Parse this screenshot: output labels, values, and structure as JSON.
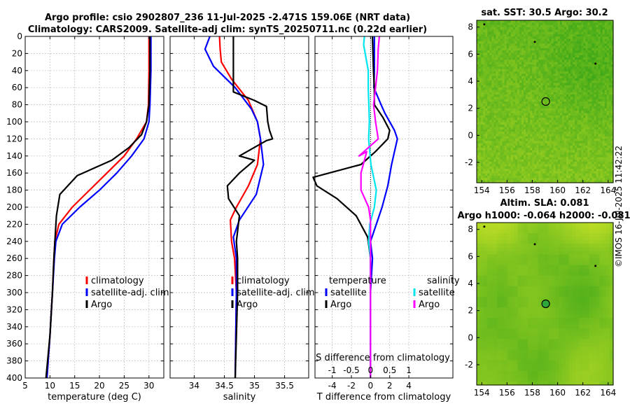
{
  "figure": {
    "title_line1": "Argo profile: csio 2902807_236 11-Jul-2025 -2.471S 159.06E (NRT data)",
    "title_line2": "Climatology: CARS2009. Satellite-adj clim: synTS_20250711.nc (0.22d earlier)",
    "stamp": "©IMOS 16-Jul-2025 11:42:22"
  },
  "colors": {
    "climatology": "#ff0000",
    "satellite": "#0000ff",
    "argo": "#000000",
    "satellite_diff_s": "#00e5ee",
    "argo_diff_s": "#ff00ff",
    "grid": "#bdbdbd"
  },
  "chart_data": [
    {
      "id": "temperature",
      "type": "line",
      "xlabel": "temperature (deg C)",
      "ylabel": "",
      "xlim": [
        5,
        33
      ],
      "ylim": [
        400,
        0
      ],
      "xticks": [
        5,
        10,
        15,
        20,
        25,
        30
      ],
      "yticks": [
        0,
        20,
        40,
        60,
        80,
        100,
        120,
        140,
        160,
        180,
        200,
        220,
        240,
        260,
        280,
        300,
        320,
        340,
        360,
        380,
        400
      ],
      "legend_position": "lower-right",
      "series": [
        {
          "name": "climatology",
          "color_key": "climatology",
          "points": [
            [
              30.0,
              0
            ],
            [
              30.0,
              40
            ],
            [
              29.9,
              80
            ],
            [
              29.5,
              100
            ],
            [
              27.5,
              120
            ],
            [
              25.0,
              140
            ],
            [
              21.5,
              160
            ],
            [
              18.0,
              180
            ],
            [
              14.5,
              200
            ],
            [
              11.8,
              220
            ],
            [
              11.0,
              240
            ],
            [
              10.8,
              260
            ],
            [
              10.5,
              300
            ],
            [
              10.0,
              350
            ],
            [
              9.4,
              400
            ]
          ]
        },
        {
          "name": "satellite-adj. clim",
          "color_key": "satellite",
          "points": [
            [
              30.4,
              0
            ],
            [
              30.4,
              40
            ],
            [
              30.2,
              80
            ],
            [
              30.0,
              100
            ],
            [
              29.0,
              120
            ],
            [
              26.5,
              140
            ],
            [
              23.5,
              160
            ],
            [
              20.0,
              180
            ],
            [
              16.0,
              200
            ],
            [
              12.5,
              220
            ],
            [
              11.2,
              240
            ],
            [
              10.9,
              260
            ],
            [
              10.5,
              300
            ],
            [
              10.0,
              350
            ],
            [
              9.4,
              400
            ]
          ]
        },
        {
          "name": "Argo",
          "color_key": "argo",
          "points": [
            [
              30.2,
              0
            ],
            [
              30.2,
              40
            ],
            [
              30.0,
              80
            ],
            [
              29.5,
              100
            ],
            [
              28.5,
              115
            ],
            [
              26.0,
              130
            ],
            [
              22.5,
              145
            ],
            [
              15.5,
              163
            ],
            [
              12.0,
              185
            ],
            [
              11.3,
              210
            ],
            [
              11.0,
              240
            ],
            [
              10.8,
              260
            ],
            [
              10.5,
              300
            ],
            [
              10.0,
              350
            ],
            [
              9.2,
              400
            ]
          ]
        }
      ]
    },
    {
      "id": "salinity",
      "type": "line",
      "xlabel": "salinity",
      "ylabel": "",
      "xlim": [
        33.6,
        35.9
      ],
      "ylim": [
        400,
        0
      ],
      "xticks": [
        34,
        34.5,
        35,
        35.5
      ],
      "yticks": [
        0,
        20,
        40,
        60,
        80,
        100,
        120,
        140,
        160,
        180,
        200,
        220,
        240,
        260,
        280,
        300,
        320,
        340,
        360,
        380,
        400
      ],
      "legend_position": "lower-right",
      "series": [
        {
          "name": "climatology",
          "color_key": "climatology",
          "points": [
            [
              34.42,
              0
            ],
            [
              34.43,
              15
            ],
            [
              34.45,
              30
            ],
            [
              34.62,
              50
            ],
            [
              34.9,
              75
            ],
            [
              35.05,
              100
            ],
            [
              35.1,
              120
            ],
            [
              35.05,
              150
            ],
            [
              34.9,
              175
            ],
            [
              34.7,
              200
            ],
            [
              34.6,
              215
            ],
            [
              34.62,
              240
            ],
            [
              34.67,
              260
            ],
            [
              34.7,
              300
            ],
            [
              34.68,
              400
            ]
          ]
        },
        {
          "name": "satellite-adj. clim",
          "color_key": "satellite",
          "points": [
            [
              34.26,
              0
            ],
            [
              34.18,
              15
            ],
            [
              34.32,
              35
            ],
            [
              34.68,
              60
            ],
            [
              34.95,
              85
            ],
            [
              35.05,
              100
            ],
            [
              35.1,
              120
            ],
            [
              35.15,
              150
            ],
            [
              35.03,
              185
            ],
            [
              34.75,
              215
            ],
            [
              34.65,
              235
            ],
            [
              34.7,
              260
            ],
            [
              34.7,
              300
            ],
            [
              34.68,
              400
            ]
          ]
        },
        {
          "name": "Argo",
          "color_key": "argo",
          "points": [
            [
              34.65,
              0
            ],
            [
              34.65,
              50
            ],
            [
              34.65,
              65
            ],
            [
              35.0,
              75
            ],
            [
              35.2,
              82
            ],
            [
              35.22,
              100
            ],
            [
              35.25,
              110
            ],
            [
              35.3,
              120
            ],
            [
              35.2,
              122
            ],
            [
              35.0,
              130
            ],
            [
              34.75,
              140
            ],
            [
              35.0,
              145
            ],
            [
              34.75,
              160
            ],
            [
              34.55,
              175
            ],
            [
              34.57,
              190
            ],
            [
              34.75,
              210
            ],
            [
              34.7,
              240
            ],
            [
              34.72,
              260
            ],
            [
              34.72,
              300
            ],
            [
              34.68,
              400
            ]
          ]
        }
      ]
    },
    {
      "id": "difference",
      "type": "line",
      "xlabel": "T difference from climatology",
      "x2label": "S difference from climatology",
      "xlim": [
        -5.8,
        8.6
      ],
      "x2lim": [
        -1.45,
        2.15
      ],
      "ylim": [
        400,
        0
      ],
      "xticks": [
        -4,
        -2,
        0,
        2,
        4
      ],
      "x2ticks": [
        -1,
        -0.5,
        0,
        0.5,
        1
      ],
      "yticks": [
        0,
        20,
        40,
        60,
        80,
        100,
        120,
        140,
        160,
        180,
        200,
        220,
        240,
        260,
        280,
        300,
        320,
        340,
        360,
        380,
        400
      ],
      "legend_temperature_title": "temperature",
      "legend_salinity_title": "salinity",
      "legend_position": "lower-right",
      "series": [
        {
          "name": "satellite",
          "group": "temperature",
          "axis": "T",
          "color_key": "satellite",
          "points": [
            [
              0.4,
              0
            ],
            [
              0.4,
              40
            ],
            [
              0.35,
              60
            ],
            [
              1.1,
              80
            ],
            [
              1.5,
              90
            ],
            [
              2.5,
              110
            ],
            [
              2.8,
              120
            ],
            [
              2.6,
              130
            ],
            [
              2.2,
              150
            ],
            [
              1.8,
              175
            ],
            [
              1.2,
              200
            ],
            [
              0.6,
              220
            ],
            [
              0.0,
              240
            ],
            [
              0.2,
              260
            ],
            [
              0.0,
              300
            ],
            [
              0.0,
              400
            ]
          ]
        },
        {
          "name": "Argo",
          "group": "temperature",
          "axis": "T",
          "color_key": "argo",
          "points": [
            [
              0.2,
              0
            ],
            [
              0.3,
              40
            ],
            [
              0.4,
              60
            ],
            [
              0.4,
              80
            ],
            [
              1.3,
              95
            ],
            [
              2.0,
              110
            ],
            [
              1.8,
              120
            ],
            [
              0.5,
              135
            ],
            [
              -1.0,
              150
            ],
            [
              -6.0,
              165
            ],
            [
              -5.6,
              175
            ],
            [
              -3.5,
              190
            ],
            [
              -1.5,
              210
            ],
            [
              -0.3,
              235
            ],
            [
              0.0,
              260
            ],
            [
              0.0,
              300
            ],
            [
              0.0,
              400
            ]
          ]
        },
        {
          "name": "satellite",
          "group": "salinity",
          "axis": "S",
          "color_key": "satellite_diff_s",
          "points": [
            [
              -0.16,
              0
            ],
            [
              -0.18,
              10
            ],
            [
              -0.06,
              40
            ],
            [
              -0.06,
              60
            ],
            [
              -0.03,
              100
            ],
            [
              -0.05,
              120
            ],
            [
              0.01,
              150
            ],
            [
              0.15,
              180
            ],
            [
              0.1,
              200
            ],
            [
              -0.02,
              220
            ],
            [
              -0.05,
              240
            ],
            [
              0.0,
              260
            ],
            [
              0.0,
              300
            ],
            [
              0.0,
              400
            ]
          ]
        },
        {
          "name": "Argo",
          "group": "salinity",
          "axis": "S",
          "color_key": "argo_diff_s",
          "points": [
            [
              0.23,
              0
            ],
            [
              0.2,
              15
            ],
            [
              0.18,
              40
            ],
            [
              0.08,
              80
            ],
            [
              0.13,
              100
            ],
            [
              0.2,
              120
            ],
            [
              -0.3,
              140
            ],
            [
              -0.1,
              135
            ],
            [
              -0.25,
              160
            ],
            [
              -0.25,
              180
            ],
            [
              -0.05,
              200
            ],
            [
              0.0,
              215
            ],
            [
              0.0,
              260
            ],
            [
              0.0,
              300
            ],
            [
              0.0,
              400
            ]
          ]
        }
      ]
    },
    {
      "id": "sst-map",
      "type": "heatmap",
      "title": "sat. SST: 30.5 Argo: 30.2",
      "xlim": [
        153.6,
        164.4
      ],
      "ylim": [
        -3.5,
        8.5
      ],
      "xticks": [
        154,
        156,
        158,
        160,
        162,
        164
      ],
      "yticks": [
        -2,
        0,
        2,
        4,
        6,
        8
      ],
      "argo_position": [
        159.06,
        2.5
      ],
      "colormap": "green-yellow",
      "notes": "Satellite SST field around the float position"
    },
    {
      "id": "sla-map",
      "type": "heatmap",
      "title": "Altim. SLA: 0.081",
      "subtitle": "Argo h1000: -0.064 h2000: -0.081",
      "xlim": [
        153.6,
        164.4
      ],
      "ylim": [
        -3.5,
        8.5
      ],
      "xticks": [
        154,
        156,
        158,
        160,
        162,
        164
      ],
      "yticks": [
        -2,
        0,
        2,
        4,
        6,
        8
      ],
      "argo_position": [
        159.06,
        2.5
      ],
      "colormap": "green-yellow",
      "notes": "Sea level anomaly field around the float position"
    }
  ]
}
